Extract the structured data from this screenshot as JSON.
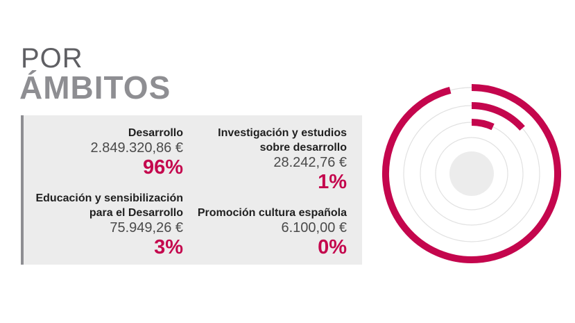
{
  "title": {
    "line1": "POR",
    "line2": "ÁMBITOS"
  },
  "items": [
    {
      "label": "Desarrollo",
      "amount": "2.849.320,86 €",
      "percent": "96%"
    },
    {
      "label": "Investigación y estudios sobre desarrollo",
      "amount": "28.242,76 €",
      "percent": "1%"
    },
    {
      "label": "Educación y sensibilización para el Desarrollo",
      "amount": "75.949,26 €",
      "percent": "3%"
    },
    {
      "label": "Promoción cultura española",
      "amount": "6.100,00 €",
      "percent": "0%"
    }
  ],
  "colors": {
    "accent": "#c4064d",
    "track": "#e1e1e1",
    "center": "#ececec",
    "panel": "#ececec",
    "bar": "#8e8e92"
  },
  "chart_data": {
    "type": "radial-bar",
    "categories": [
      "Desarrollo",
      "Educación y sensibilización para el Desarrollo",
      "Investigación y estudios sobre desarrollo",
      "Promoción cultura española"
    ],
    "values": [
      96,
      3,
      1,
      0
    ]
  }
}
